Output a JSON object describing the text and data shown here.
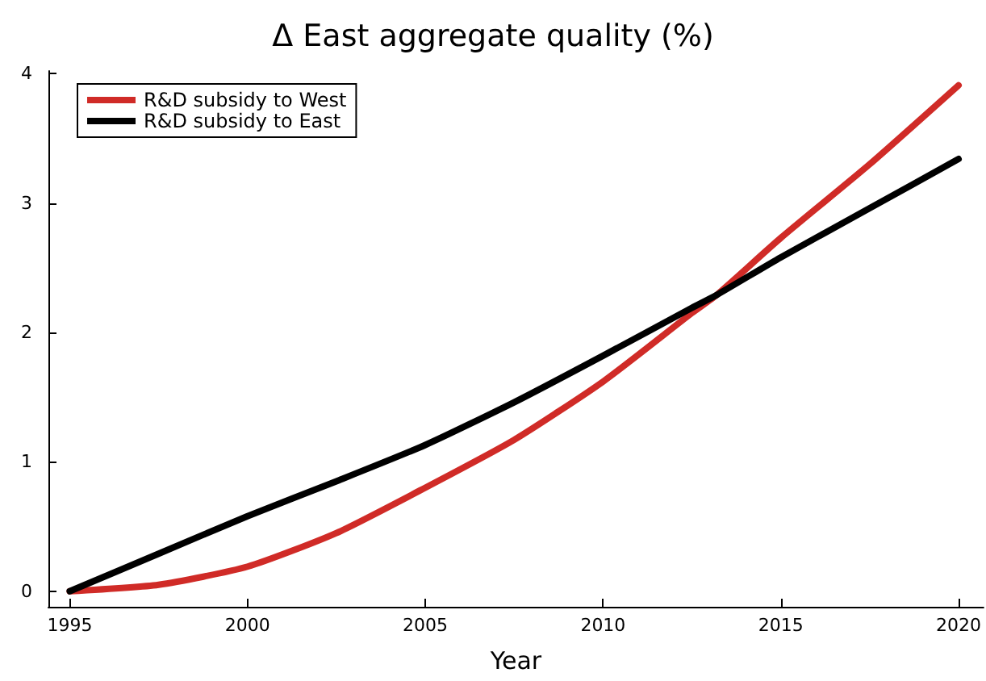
{
  "chart_data": {
    "type": "line",
    "title": "Δ East aggregate quality (%)",
    "xlabel": "Year",
    "x": [
      1995,
      1997.5,
      2000,
      2002.5,
      2005,
      2007.5,
      2010,
      2012.5,
      2013.2,
      2015,
      2017.5,
      2020
    ],
    "series": [
      {
        "name": "R&D subsidy to West",
        "color": "#d02b27",
        "values": [
          0,
          0.05,
          0.19,
          0.45,
          0.8,
          1.17,
          1.62,
          2.15,
          2.29,
          2.73,
          3.3,
          3.91
        ]
      },
      {
        "name": "R&D subsidy to East",
        "color": "#000000",
        "values": [
          0,
          0.29,
          0.58,
          0.85,
          1.13,
          1.46,
          1.82,
          2.19,
          2.29,
          2.58,
          2.96,
          3.34
        ]
      }
    ],
    "xlim": [
      1994.4,
      2020.7
    ],
    "xticks": [
      1995,
      2000,
      2005,
      2010,
      2015,
      2020
    ],
    "ylim": [
      -0.12,
      4.02
    ],
    "yticks": [
      0,
      1,
      2,
      3,
      4
    ],
    "grid": false,
    "legend": "top left",
    "marker": "none",
    "line_style": "solid"
  }
}
